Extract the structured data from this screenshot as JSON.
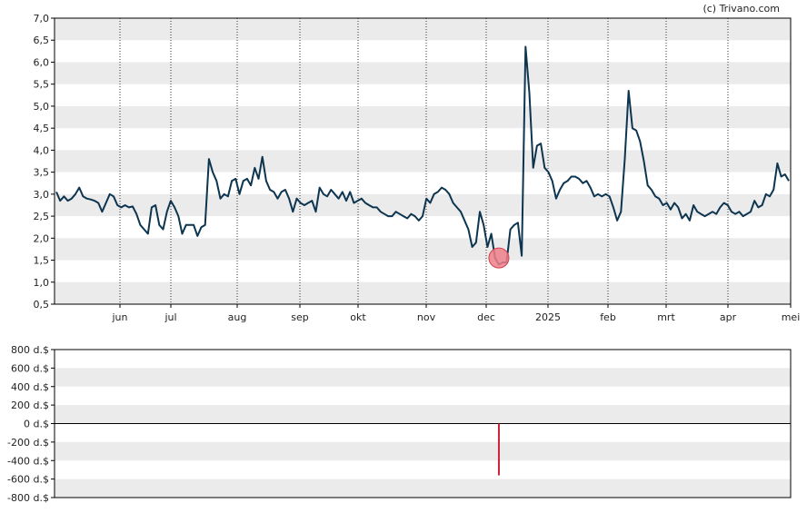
{
  "watermark": "(c) Trivano.com",
  "colors": {
    "line": "#0d3550",
    "band": "#ebebeb",
    "marker_fill": "#f07f8a",
    "marker_stroke": "#d2424f",
    "volume_bar": "#cc2233",
    "axis": "#000000",
    "grid_dotted": "#333333"
  },
  "chart_data": [
    {
      "type": "line",
      "title": "",
      "ylim": [
        0.5,
        7.0
      ],
      "y_ticks": [
        "7,0",
        "6,5",
        "6,0",
        "5,5",
        "5,0",
        "4,5",
        "4,0",
        "3,5",
        "3,0",
        "2,5",
        "2,0",
        "1,5",
        "1,0",
        "0,5"
      ],
      "x_ticks": [
        "jun",
        "jul",
        "aug",
        "sep",
        "okt",
        "nov",
        "dec",
        "2025",
        "feb",
        "mrt",
        "apr",
        "mei"
      ],
      "grid": "horizontal bands + dotted vertical month lines",
      "series": [
        {
          "values": [
            3.05,
            2.85,
            2.95,
            2.85,
            2.9,
            3.0,
            3.15,
            2.95,
            2.9,
            2.88,
            2.85,
            2.8,
            2.6,
            2.8,
            3.0,
            2.95,
            2.75,
            2.7,
            2.75,
            2.7,
            2.72,
            2.55,
            2.3,
            2.2,
            2.1,
            2.7,
            2.75,
            2.3,
            2.2,
            2.6,
            2.85,
            2.7,
            2.5,
            2.1,
            2.3,
            2.3,
            2.3,
            2.05,
            2.25,
            2.3,
            3.8,
            3.5,
            3.3,
            2.9,
            3.0,
            2.95,
            3.3,
            3.35,
            3.0,
            3.3,
            3.35,
            3.2,
            3.6,
            3.35,
            3.85,
            3.3,
            3.1,
            3.05,
            2.9,
            3.05,
            3.1,
            2.9,
            2.6,
            2.9,
            2.8,
            2.75,
            2.8,
            2.85,
            2.6,
            3.15,
            3.0,
            2.95,
            3.1,
            3.0,
            2.9,
            3.05,
            2.85,
            3.05,
            2.8,
            2.85,
            2.9,
            2.8,
            2.75,
            2.7,
            2.7,
            2.6,
            2.55,
            2.5,
            2.5,
            2.6,
            2.55,
            2.5,
            2.45,
            2.55,
            2.5,
            2.4,
            2.5,
            2.9,
            2.8,
            3.0,
            3.05,
            3.15,
            3.1,
            3.0,
            2.8,
            2.7,
            2.6,
            2.4,
            2.2,
            1.8,
            1.9,
            2.6,
            2.3,
            1.8,
            2.1,
            1.55,
            1.4,
            1.45,
            1.45,
            2.2,
            2.3,
            2.35,
            1.6,
            6.35,
            5.3,
            3.6,
            4.1,
            4.15,
            3.6,
            3.5,
            3.3,
            2.9,
            3.1,
            3.25,
            3.3,
            3.4,
            3.4,
            3.35,
            3.25,
            3.3,
            3.15,
            2.95,
            3.0,
            2.95,
            3.0,
            2.95,
            2.7,
            2.4,
            2.6,
            3.8,
            5.35,
            4.5,
            4.45,
            4.2,
            3.75,
            3.2,
            3.1,
            2.95,
            2.9,
            2.75,
            2.8,
            2.65,
            2.8,
            2.7,
            2.45,
            2.55,
            2.4,
            2.75,
            2.6,
            2.55,
            2.5,
            2.55,
            2.6,
            2.55,
            2.7,
            2.8,
            2.75,
            2.6,
            2.55,
            2.6,
            2.5,
            2.55,
            2.6,
            2.85,
            2.7,
            2.75,
            3.0,
            2.95,
            3.1,
            3.7,
            3.4,
            3.45,
            3.3
          ]
        }
      ],
      "marker": {
        "index": 116,
        "y": 1.55
      }
    },
    {
      "type": "bar",
      "title": "",
      "ylim": [
        -800,
        800
      ],
      "y_ticks": [
        "800 d.$",
        "600 d.$",
        "400 d.$",
        "200 d.$",
        "0 d.$",
        "-200 d.$",
        "-400 d.$",
        "-600 d.$",
        "-800 d.$"
      ],
      "bars": [
        {
          "index": 116,
          "value": -560
        }
      ]
    }
  ]
}
